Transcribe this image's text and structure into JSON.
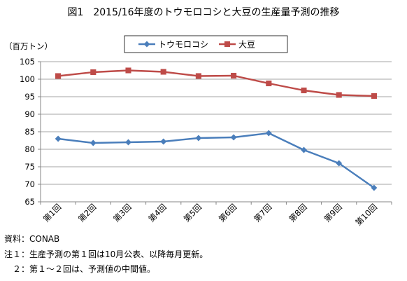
{
  "chart_data": {
    "type": "line",
    "title": "図1　2015/16年度のトウモロコシと大豆の生産量予測の推移",
    "ylabel": "（百万トン）",
    "xlabel": "",
    "categories": [
      "第1回",
      "第2回",
      "第3回",
      "第4回",
      "第5回",
      "第6回",
      "第7回",
      "第8回",
      "第9回",
      "第10回"
    ],
    "ylim": [
      65,
      105
    ],
    "yticks": [
      65,
      70,
      75,
      80,
      85,
      90,
      95,
      100,
      105
    ],
    "grid": true,
    "legend_position": "top-center",
    "series": [
      {
        "name": "トウモロコシ",
        "color": "#4A7EBB",
        "marker": "diamond",
        "values": [
          83.0,
          81.8,
          82.0,
          82.2,
          83.2,
          83.4,
          84.6,
          79.8,
          76.0,
          69.0
        ]
      },
      {
        "name": "大豆",
        "color": "#BE4B48",
        "marker": "square",
        "values": [
          100.9,
          102.0,
          102.5,
          102.1,
          100.9,
          101.0,
          98.8,
          96.8,
          95.5,
          95.2
        ]
      }
    ]
  },
  "notes": {
    "source": "資料：CONAB",
    "note1": "注１：生産予測の第１回は10月公表、以降毎月更新。",
    "note2": "　２：第１～２回は、予測値の中間値。"
  },
  "icons": {
    "series_markers": [
      "diamond-marker",
      "square-marker"
    ]
  }
}
